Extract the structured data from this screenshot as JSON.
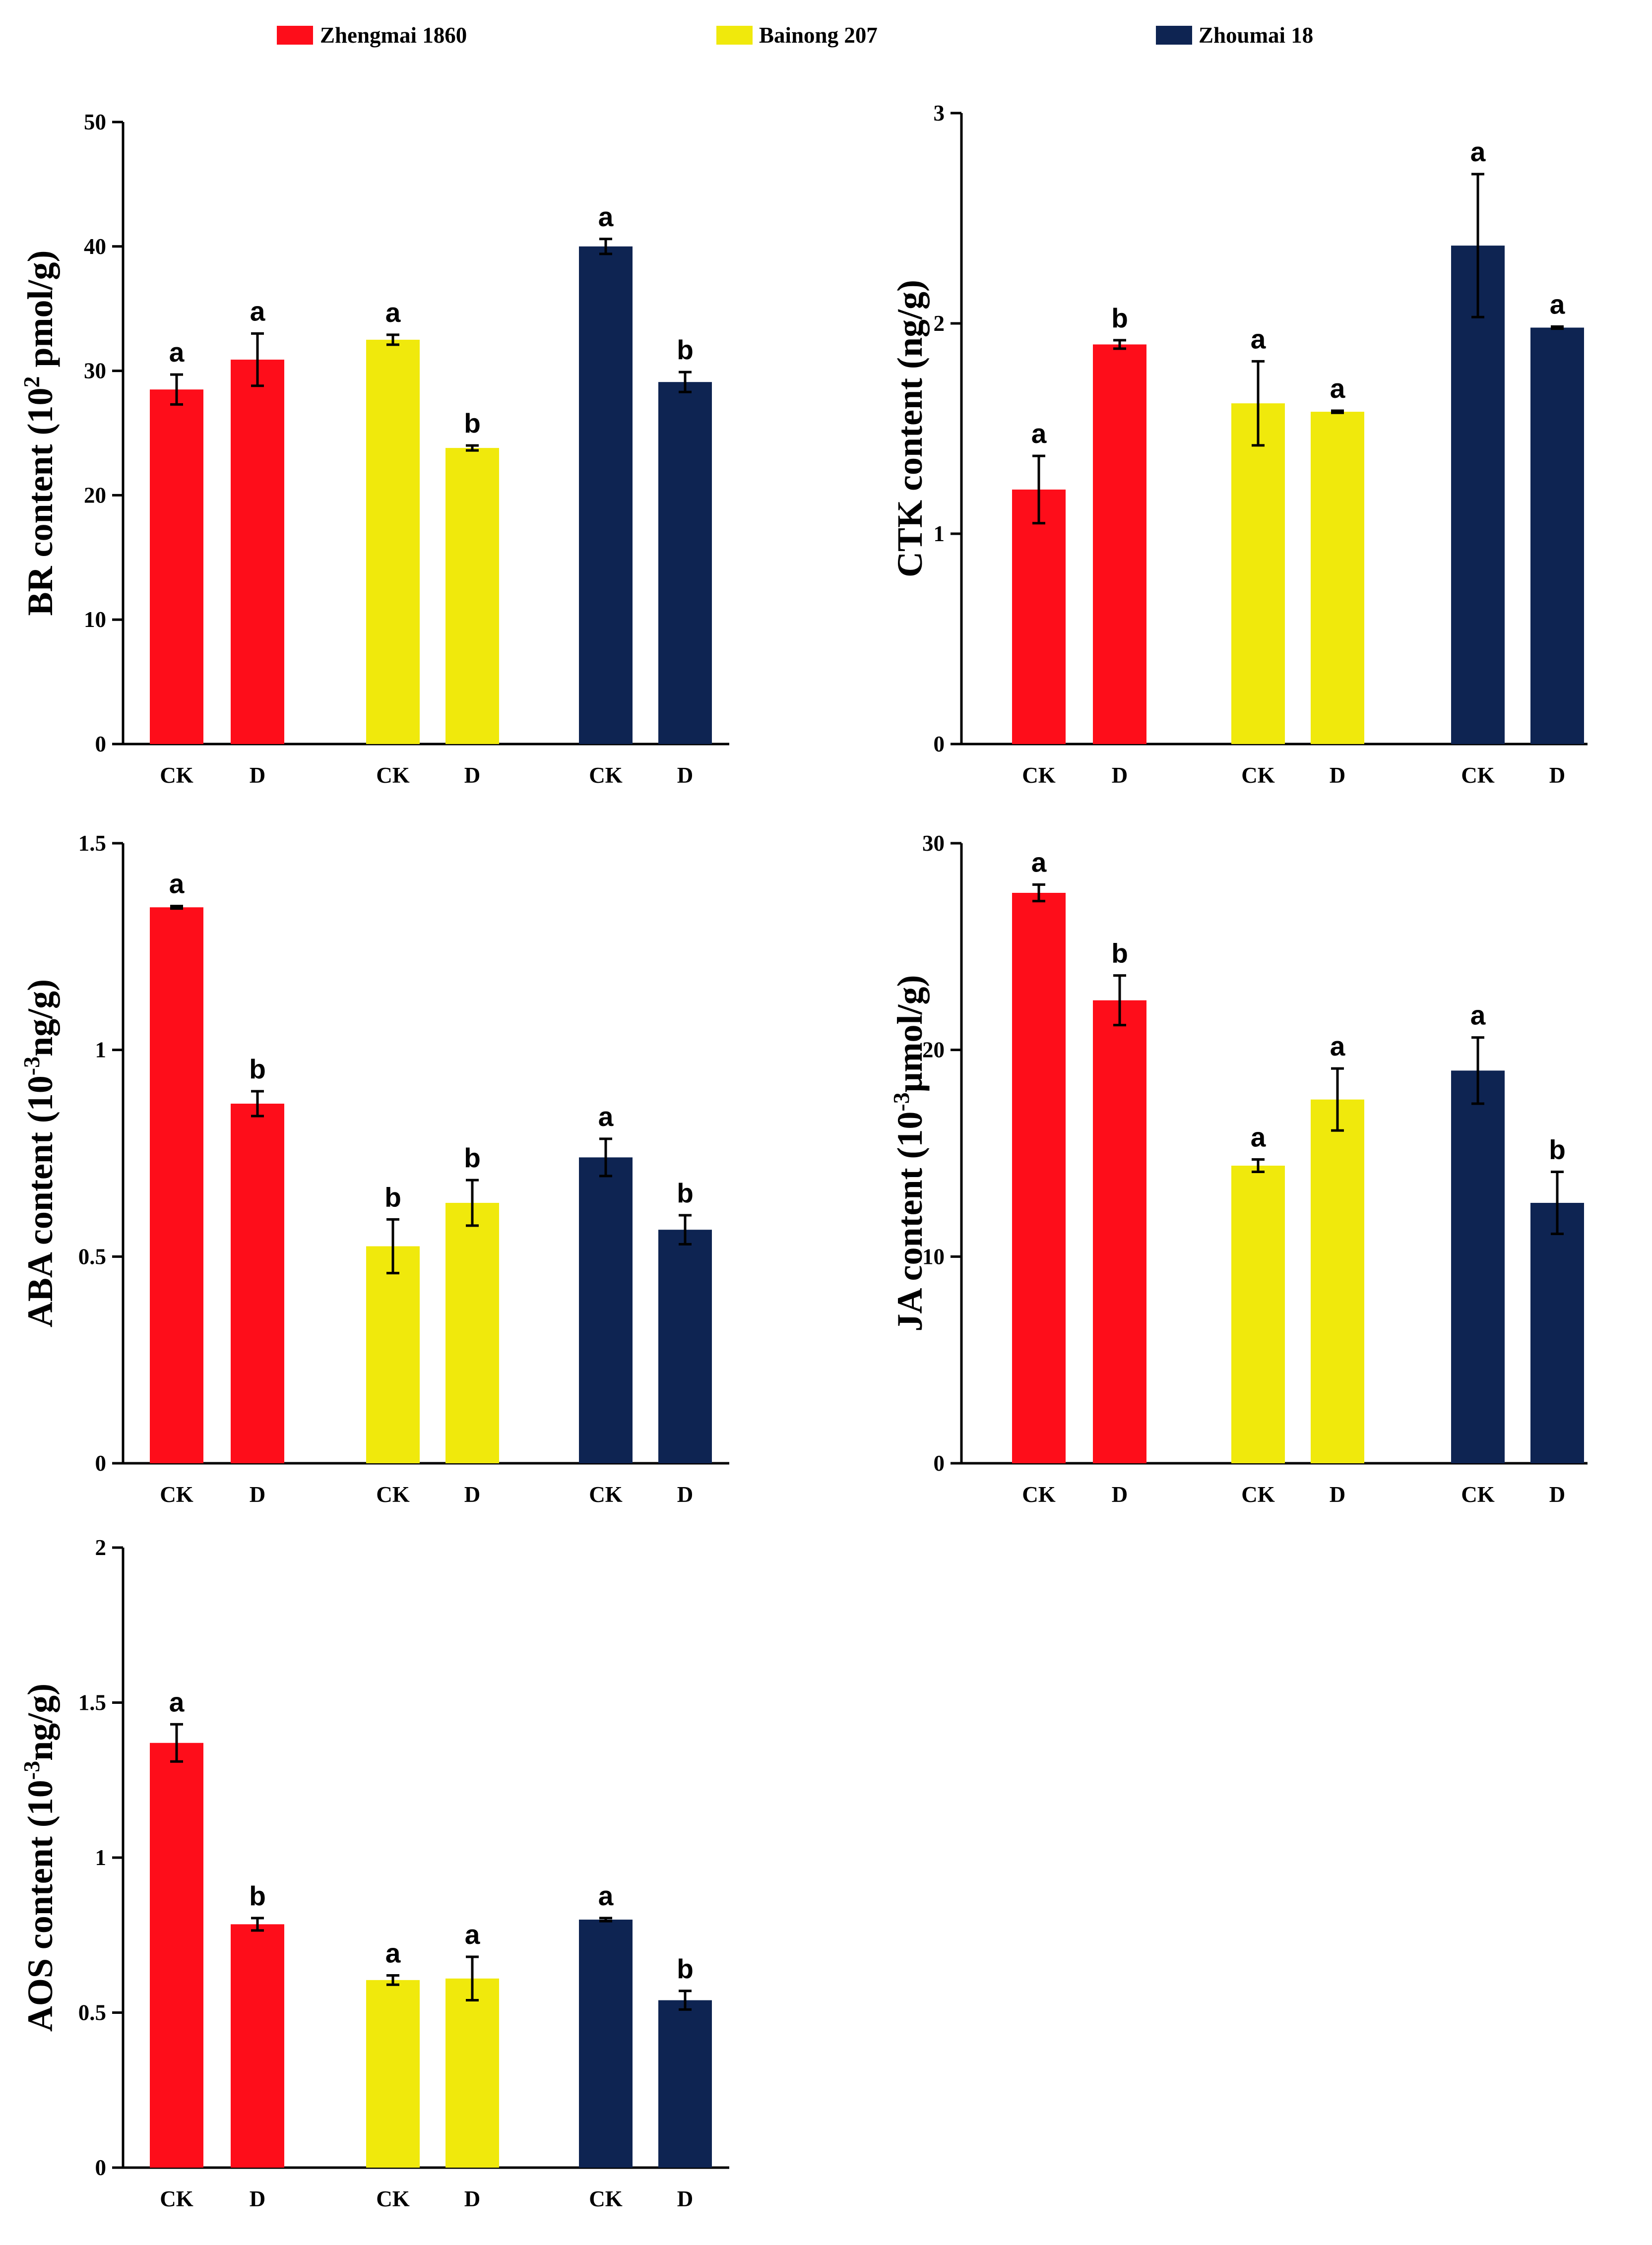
{
  "legend": [
    {
      "name": "Zhengmai 1860",
      "color": "#fe0d1a"
    },
    {
      "name": "Bainong 207",
      "color": "#f0e90c"
    },
    {
      "name": "Zhoumai 18",
      "color": "#0e2452"
    }
  ],
  "chart_data": [
    {
      "type": "bar",
      "ylabel_parts": [
        "BR content (10",
        "2",
        " pmol/g)"
      ],
      "ylim": [
        0,
        50
      ],
      "yticks": [
        0,
        10,
        20,
        30,
        40,
        50
      ],
      "ytick_labels": [
        "0",
        "10",
        "20",
        "30",
        "40",
        "50"
      ],
      "categories": [
        "CK",
        "D",
        "CK",
        "D",
        "CK",
        "D"
      ],
      "series_index": [
        0,
        0,
        1,
        1,
        2,
        2
      ],
      "values": [
        28.5,
        30.9,
        32.5,
        23.8,
        40.0,
        29.1
      ],
      "errors": [
        1.2,
        2.1,
        0.4,
        0.2,
        0.6,
        0.8
      ],
      "letters": [
        "a",
        "a",
        "a",
        "b",
        "a",
        "b"
      ]
    },
    {
      "type": "bar",
      "ylabel_parts": [
        "CTK content (ng/g)"
      ],
      "ylim": [
        0,
        3
      ],
      "yticks": [
        0,
        1,
        2,
        3
      ],
      "ytick_labels": [
        "0",
        "1",
        "2",
        "3"
      ],
      "categories": [
        "CK",
        "D",
        "CK",
        "D",
        "CK",
        "D"
      ],
      "series_index": [
        0,
        0,
        1,
        1,
        2,
        2
      ],
      "values": [
        1.21,
        1.9,
        1.62,
        1.58,
        2.37,
        1.98
      ],
      "errors": [
        0.16,
        0.02,
        0.2,
        0.005,
        0.34,
        0.005
      ],
      "letters": [
        "a",
        "b",
        "a",
        "a",
        "a",
        "a"
      ]
    },
    {
      "type": "bar",
      "ylabel_parts": [
        "ABA content (10",
        "-3",
        "ng/g)"
      ],
      "ylim": [
        0,
        1.5
      ],
      "yticks": [
        0,
        0.5,
        1,
        1.5
      ],
      "ytick_labels": [
        "0",
        "0.5",
        "1",
        "1.5"
      ],
      "categories": [
        "CK",
        "D",
        "CK",
        "D",
        "CK",
        "D"
      ],
      "series_index": [
        0,
        0,
        1,
        1,
        2,
        2
      ],
      "values": [
        1.345,
        0.87,
        0.525,
        0.63,
        0.74,
        0.565
      ],
      "errors": [
        0.003,
        0.03,
        0.065,
        0.055,
        0.045,
        0.035
      ],
      "letters": [
        "a",
        "b",
        "b",
        "b",
        "a",
        "b"
      ]
    },
    {
      "type": "bar",
      "ylabel_parts": [
        "JA content (10",
        "-3",
        "μmol/g)"
      ],
      "ylim": [
        0,
        30
      ],
      "yticks": [
        0,
        10,
        20,
        30
      ],
      "ytick_labels": [
        "0",
        "10",
        "20",
        "30"
      ],
      "categories": [
        "CK",
        "D",
        "CK",
        "D",
        "CK",
        "D"
      ],
      "series_index": [
        0,
        0,
        1,
        1,
        2,
        2
      ],
      "values": [
        27.6,
        22.4,
        14.4,
        17.6,
        19.0,
        12.6
      ],
      "errors": [
        0.4,
        1.2,
        0.3,
        1.5,
        1.6,
        1.5
      ],
      "letters": [
        "a",
        "b",
        "a",
        "a",
        "a",
        "b"
      ]
    },
    {
      "type": "bar",
      "ylabel_parts": [
        "AOS content (10",
        "-3",
        "ng/g)"
      ],
      "ylim": [
        0,
        2
      ],
      "yticks": [
        0,
        0.5,
        1,
        1.5,
        2
      ],
      "ytick_labels": [
        "0",
        "0.5",
        "1",
        "1.5",
        "2"
      ],
      "categories": [
        "CK",
        "D",
        "CK",
        "D",
        "CK",
        "D"
      ],
      "series_index": [
        0,
        0,
        1,
        1,
        2,
        2
      ],
      "values": [
        1.37,
        0.785,
        0.605,
        0.61,
        0.8,
        0.54
      ],
      "errors": [
        0.06,
        0.02,
        0.015,
        0.07,
        0.005,
        0.03
      ],
      "letters": [
        "a",
        "b",
        "a",
        "a",
        "a",
        "b"
      ]
    }
  ]
}
